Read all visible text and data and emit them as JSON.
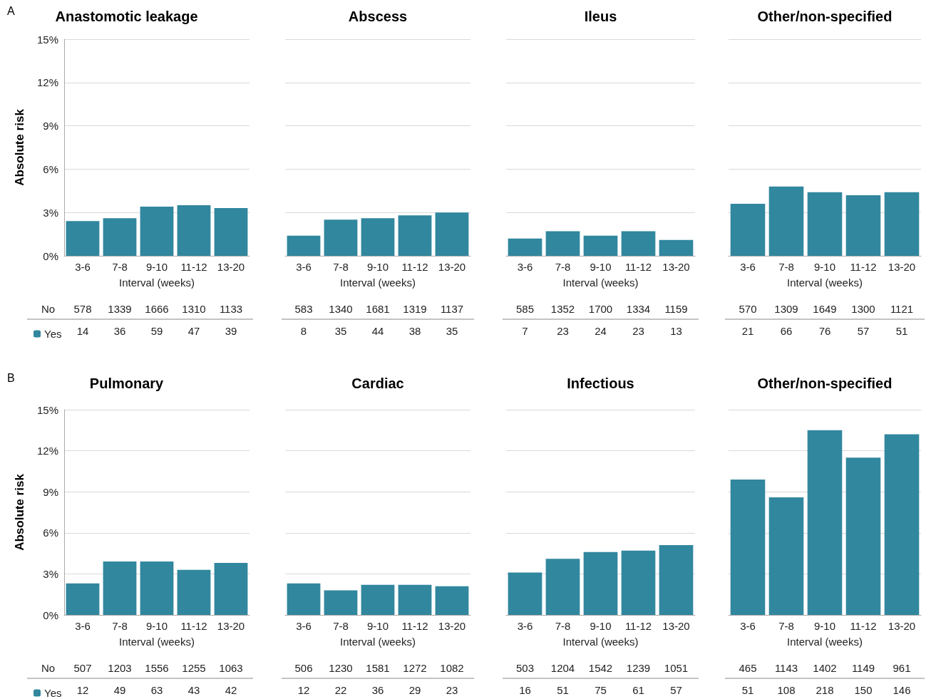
{
  "chart_data": [
    {
      "type": "bar",
      "title": "Anastomotic leakage",
      "xlabel": "Interval (weeks)",
      "ylabel": "Absolute risk",
      "categories": [
        "3-6",
        "7-8",
        "9-10",
        "11-12",
        "13-20"
      ],
      "series": [
        {
          "name": "Yes",
          "color": "#31879e",
          "values": [
            2.4,
            2.6,
            3.4,
            3.5,
            3.3
          ]
        }
      ],
      "ylim": [
        0,
        15
      ],
      "yticks": [
        {
          "value": 0,
          "label": "0%"
        },
        {
          "value": 3,
          "label": "3%"
        },
        {
          "value": 6,
          "label": "6%"
        },
        {
          "value": 9,
          "label": "9%"
        },
        {
          "value": 12,
          "label": "12%"
        },
        {
          "value": 15,
          "label": "15%"
        }
      ],
      "grid": "y",
      "legend": "bottom",
      "annotations": [
        "A",
        "No",
        "578",
        "1339",
        "1666",
        "1310",
        "1133",
        "14",
        "36",
        "59",
        "47",
        "39"
      ]
    },
    {
      "type": "bar",
      "title": "Abscess",
      "xlabel": "Interval (weeks)",
      "categories": [
        "3-6",
        "7-8",
        "9-10",
        "11-12",
        "13-20"
      ],
      "series": [
        {
          "color": "#31879e",
          "values": [
            1.4,
            2.5,
            2.6,
            2.8,
            3.0
          ]
        }
      ],
      "ylim": [
        0,
        15
      ],
      "yticks": [
        {
          "value": 0,
          "label": null
        },
        {
          "value": 3,
          "label": null
        },
        {
          "value": 6,
          "label": null
        },
        {
          "value": 9,
          "label": null
        },
        {
          "value": 12,
          "label": null
        },
        {
          "value": 15,
          "label": null
        }
      ],
      "grid": "y",
      "tick_labels": "x",
      "annotations": [
        "583",
        "1340",
        "1681",
        "1319",
        "1137",
        "8",
        "35",
        "44",
        "38",
        "35"
      ]
    },
    {
      "type": "bar",
      "title": "Ileus",
      "xlabel": "Interval (weeks)",
      "categories": [
        "3-6",
        "7-8",
        "9-10",
        "11-12",
        "13-20"
      ],
      "series": [
        {
          "color": "#31879e",
          "values": [
            1.2,
            1.7,
            1.4,
            1.7,
            1.1
          ]
        }
      ],
      "ylim": [
        0,
        15
      ],
      "yticks": [
        {
          "value": 0,
          "label": null
        },
        {
          "value": 3,
          "label": null
        },
        {
          "value": 6,
          "label": null
        },
        {
          "value": 9,
          "label": null
        },
        {
          "value": 12,
          "label": null
        },
        {
          "value": 15,
          "label": null
        }
      ],
      "grid": "y",
      "tick_labels": "x",
      "annotations": [
        "585",
        "1352",
        "1700",
        "1334",
        "1159",
        "7",
        "23",
        "24",
        "23",
        "13"
      ]
    },
    {
      "type": "bar",
      "title": "Other/non-specified",
      "xlabel": "Interval (weeks)",
      "categories": [
        "3-6",
        "7-8",
        "9-10",
        "11-12",
        "13-20"
      ],
      "series": [
        {
          "color": "#31879e",
          "values": [
            3.6,
            4.8,
            4.4,
            4.2,
            4.4
          ]
        }
      ],
      "ylim": [
        0,
        15
      ],
      "yticks": [
        {
          "value": 0,
          "label": null
        },
        {
          "value": 3,
          "label": null
        },
        {
          "value": 6,
          "label": null
        },
        {
          "value": 9,
          "label": null
        },
        {
          "value": 12,
          "label": null
        },
        {
          "value": 15,
          "label": null
        }
      ],
      "grid": "y",
      "tick_labels": "x",
      "annotations": [
        "570",
        "1309",
        "1649",
        "1300",
        "1121",
        "21",
        "66",
        "76",
        "57",
        "51"
      ]
    },
    {
      "type": "bar",
      "title": "Pulmonary",
      "xlabel": "Interval (weeks)",
      "ylabel": "Absolute risk",
      "categories": [
        "3-6",
        "7-8",
        "9-10",
        "11-12",
        "13-20"
      ],
      "series": [
        {
          "name": "Yes",
          "color": "#31879e",
          "values": [
            2.3,
            3.9,
            3.9,
            3.3,
            3.8
          ]
        }
      ],
      "ylim": [
        0,
        15
      ],
      "yticks": [
        {
          "value": 0,
          "label": "0%"
        },
        {
          "value": 3,
          "label": "3%"
        },
        {
          "value": 6,
          "label": "6%"
        },
        {
          "value": 9,
          "label": "9%"
        },
        {
          "value": 12,
          "label": "12%"
        },
        {
          "value": 15,
          "label": "15%"
        }
      ],
      "grid": "y",
      "legend": "bottom",
      "annotations": [
        "B",
        "No",
        "507",
        "1203",
        "1556",
        "1255",
        "1063",
        "12",
        "49",
        "63",
        "43",
        "42"
      ]
    },
    {
      "type": "bar",
      "title": "Cardiac",
      "xlabel": "Interval (weeks)",
      "categories": [
        "3-6",
        "7-8",
        "9-10",
        "11-12",
        "13-20"
      ],
      "series": [
        {
          "color": "#31879e",
          "values": [
            2.3,
            1.8,
            2.2,
            2.2,
            2.1
          ]
        }
      ],
      "ylim": [
        0,
        15
      ],
      "yticks": [
        {
          "value": 0,
          "label": null
        },
        {
          "value": 3,
          "label": null
        },
        {
          "value": 6,
          "label": null
        },
        {
          "value": 9,
          "label": null
        },
        {
          "value": 12,
          "label": null
        },
        {
          "value": 15,
          "label": null
        }
      ],
      "grid": "y",
      "tick_labels": "x",
      "annotations": [
        "506",
        "1230",
        "1581",
        "1272",
        "1082",
        "12",
        "22",
        "36",
        "29",
        "23"
      ]
    },
    {
      "type": "bar",
      "title": "Infectious",
      "xlabel": "Interval (weeks)",
      "categories": [
        "3-6",
        "7-8",
        "9-10",
        "11-12",
        "13-20"
      ],
      "series": [
        {
          "color": "#31879e",
          "values": [
            3.1,
            4.1,
            4.6,
            4.7,
            5.1
          ]
        }
      ],
      "ylim": [
        0,
        15
      ],
      "yticks": [
        {
          "value": 0,
          "label": null
        },
        {
          "value": 3,
          "label": null
        },
        {
          "value": 6,
          "label": null
        },
        {
          "value": 9,
          "label": null
        },
        {
          "value": 12,
          "label": null
        },
        {
          "value": 15,
          "label": null
        }
      ],
      "grid": "y",
      "tick_labels": "x",
      "annotations": [
        "503",
        "1204",
        "1542",
        "1239",
        "1051",
        "16",
        "51",
        "75",
        "61",
        "57"
      ]
    },
    {
      "type": "bar",
      "title": "Other/non-specified",
      "xlabel": "Interval (weeks)",
      "categories": [
        "3-6",
        "7-8",
        "9-10",
        "11-12",
        "13-20"
      ],
      "series": [
        {
          "color": "#31879e",
          "values": [
            9.9,
            8.6,
            13.5,
            11.5,
            13.2
          ]
        }
      ],
      "ylim": [
        0,
        15
      ],
      "yticks": [
        {
          "value": 0,
          "label": null
        },
        {
          "value": 3,
          "label": null
        },
        {
          "value": 6,
          "label": null
        },
        {
          "value": 9,
          "label": null
        },
        {
          "value": 12,
          "label": null
        },
        {
          "value": 15,
          "label": null
        }
      ],
      "grid": "y",
      "tick_labels": "x",
      "annotations": [
        "465",
        "1143",
        "1402",
        "1149",
        "961",
        "51",
        "108",
        "218",
        "150",
        "146"
      ]
    }
  ]
}
